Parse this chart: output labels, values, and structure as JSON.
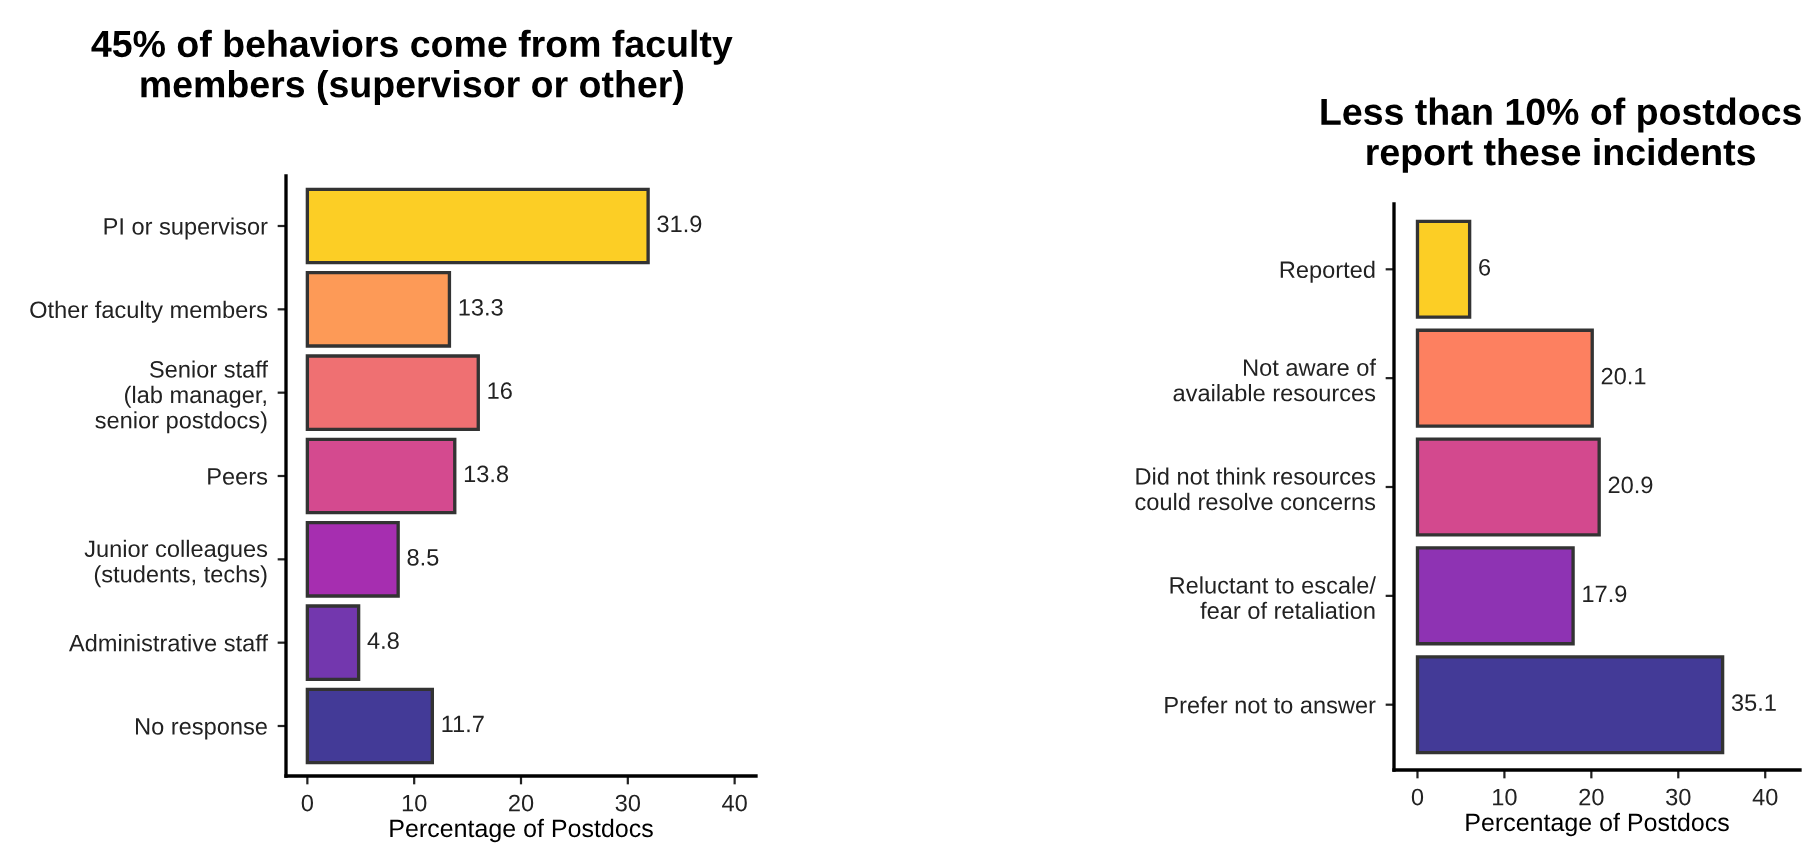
{
  "chart_data": [
    {
      "type": "bar",
      "orientation": "horizontal",
      "title": "45% of behaviors come from faculty\nmembers (supervisor or other)",
      "xlabel": "Percentage of Postdocs",
      "categories": [
        "PI or supervisor",
        "Other faculty members",
        "Senior staff\n(lab manager,\nsenior postdocs)",
        "Peers",
        "Junior colleagues\n(students, techs)",
        "Administrative staff",
        "No response"
      ],
      "values": [
        31.9,
        13.3,
        16,
        13.8,
        8.5,
        4.8,
        11.7
      ],
      "colors": [
        "#fcce25",
        "#fd9a57",
        "#ef7072",
        "#d44a8f",
        "#a62eb0",
        "#7337ae",
        "#433a97"
      ],
      "xlim": [
        -2,
        42
      ],
      "xticks": [
        0,
        10,
        20,
        30,
        40
      ],
      "data_labels": true,
      "grid": false,
      "legend": false
    },
    {
      "type": "bar",
      "orientation": "horizontal",
      "title": "Less than 10% of postdocs\nreport these incidents",
      "xlabel": "Percentage of Postdocs",
      "categories": [
        "Reported",
        "Not aware of\navailable resources",
        "Did not think resources\ncould resolve concerns",
        "Reluctant to escale/\nfear of retaliation",
        "Prefer not to answer"
      ],
      "values": [
        6,
        20.1,
        20.9,
        17.9,
        35.1
      ],
      "colors": [
        "#fcce25",
        "#fd8060",
        "#d3498e",
        "#8e33b3",
        "#433a97"
      ],
      "xlim": [
        -2.7,
        44
      ],
      "xticks": [
        0,
        10,
        20,
        30,
        40
      ],
      "data_labels": true,
      "grid": false,
      "legend": false
    }
  ]
}
